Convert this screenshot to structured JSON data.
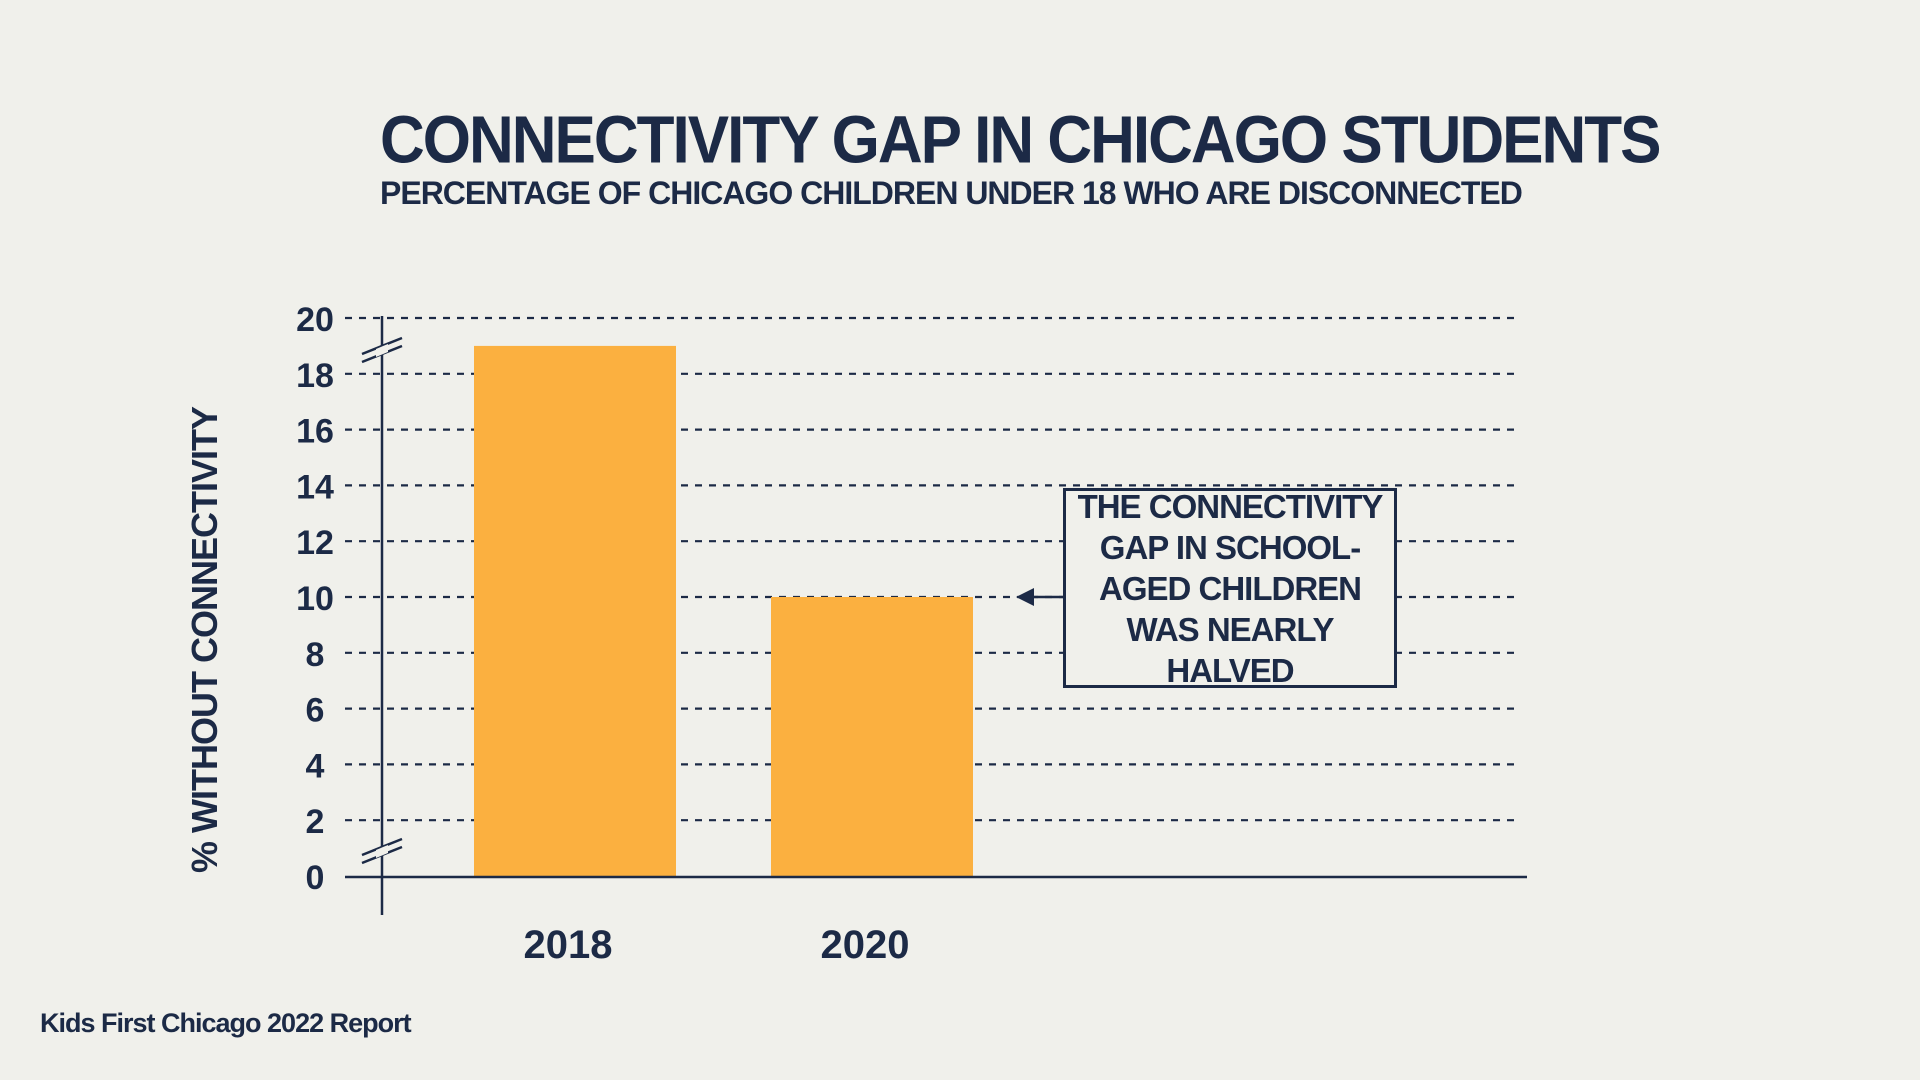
{
  "chart_data": {
    "type": "bar",
    "title": "CONNECTIVITY GAP IN CHICAGO STUDENTS",
    "subtitle": "PERCENTAGE OF CHICAGO CHILDREN UNDER 18 WHO ARE DISCONNECTED",
    "ylabel": "% WITHOUT CONNECTIVITY",
    "xlabel": "",
    "categories": [
      "2018",
      "2020"
    ],
    "values": [
      19,
      10
    ],
    "ylim": [
      0,
      20
    ],
    "yticks": [
      0,
      2,
      4,
      6,
      8,
      10,
      12,
      14,
      16,
      18,
      20
    ],
    "grid": true,
    "bar_color": "#fbb040",
    "annotation": {
      "text": "THE CONNECTIVITY GAP IN SCHOOL-AGED CHILDREN WAS NEARLY HALVED",
      "points_to_value": 10
    },
    "source": "Kids First Chicago 2022 Report"
  },
  "colors": {
    "background": "#f0f0eb",
    "text": "#1c2a46",
    "bar": "#fbb040"
  }
}
